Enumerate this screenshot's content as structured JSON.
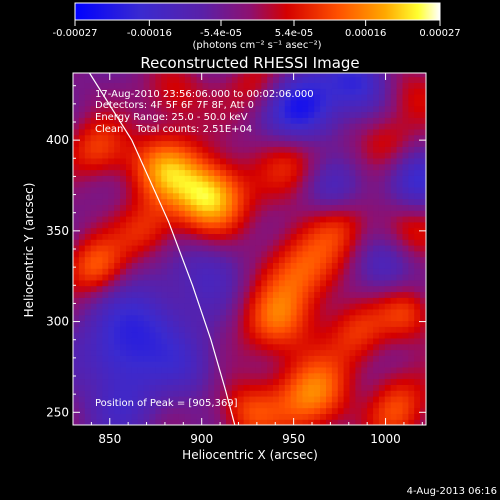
{
  "chart_data": {
    "type": "heatmap",
    "title": "Reconstructed RHESSI Image",
    "xlabel": "Heliocentric X (arcsec)",
    "ylabel": "Heliocentric Y (arcsec)",
    "xlim": [
      830,
      1022
    ],
    "ylim": [
      243,
      437
    ],
    "x_ticks": [
      850,
      900,
      950,
      1000
    ],
    "y_ticks": [
      250,
      300,
      350,
      400
    ],
    "colorbar": {
      "tick_labels": [
        "-0.00027",
        "-0.00016",
        "-5.4e-05",
        "5.4e-05",
        "0.00016",
        "0.00027"
      ],
      "tick_values": [
        -0.00027,
        -0.00016,
        -5.4e-05,
        5.4e-05,
        0.00016,
        0.00027
      ],
      "range": [
        -0.00027,
        0.00027
      ],
      "label": "(photons cm⁻² s⁻¹ asec⁻²)",
      "colors": [
        "#0000ff",
        "#3a2ad0",
        "#5a20a8",
        "#8e1070",
        "#d40000",
        "#ff5000",
        "#ffa800",
        "#ffff30",
        "#ffffff"
      ]
    },
    "annotations": [
      "17-Aug-2010 23:56:06.000 to 00:02:06.000",
      "Detectors: 4F 5F 6F 7F 8F, Att 0",
      "Energy Range: 25.0 - 50.0 keV",
      "Clean    Total counts: 2.51E+04"
    ],
    "peak_label": "Position of Peak = [905,369]",
    "limb_curve": [
      [
        839,
        437
      ],
      [
        862,
        400
      ],
      [
        882,
        355
      ],
      [
        895,
        320
      ],
      [
        905,
        290
      ],
      [
        913,
        262
      ],
      [
        918,
        243
      ]
    ]
  },
  "footer_timestamp": "4-Aug-2013 06:16"
}
